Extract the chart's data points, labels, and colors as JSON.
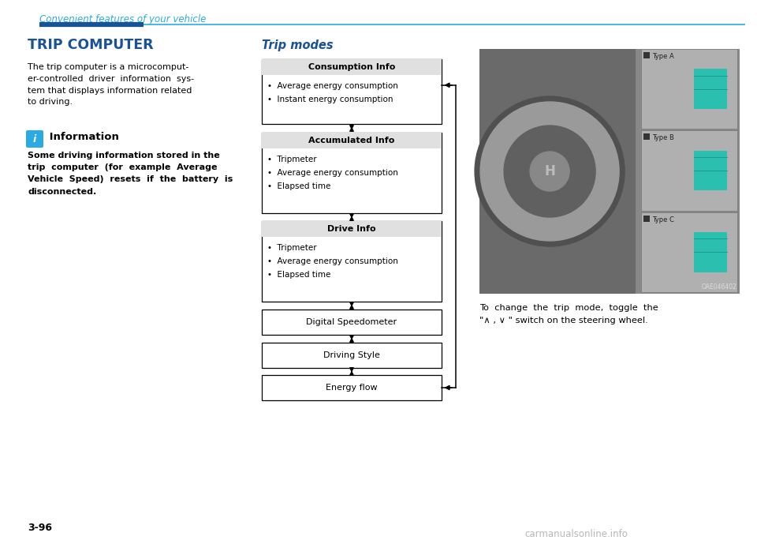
{
  "page_header": "Convenient features of your vehicle",
  "header_color": "#29ABE2",
  "section_title": "TRIP COMPUTER",
  "section_title_color": "#1a5296",
  "body_text": "The trip computer is a microcomput-\ner-controlled  driver  information  sys-\ntem that displays information related\nto driving.",
  "info_icon_color": "#29ABE2",
  "info_title": " Information",
  "info_body": "Some driving information stored in the\ntrip  computer  (for  example  Average\nVehicle  Speed)  resets  if  the  battery  is\ndisconnected.",
  "trip_modes_title": "Trip modes",
  "boxes": [
    {
      "title": "Consumption Info",
      "items": [
        "Average energy consumption",
        "Instant energy consumption"
      ],
      "has_header": true
    },
    {
      "title": "Accumulated Info",
      "items": [
        "Tripmeter",
        "Average energy consumption",
        "Elapsed time"
      ],
      "has_header": true
    },
    {
      "title": "Drive Info",
      "items": [
        "Tripmeter",
        "Average energy consumption",
        "Elapsed time"
      ],
      "has_header": true
    },
    {
      "title": "Digital Speedometer",
      "items": [],
      "has_header": false
    },
    {
      "title": "Driving Style",
      "items": [],
      "has_header": false
    },
    {
      "title": "Energy flow",
      "items": [],
      "has_header": false
    }
  ],
  "page_number": "3-96",
  "bg_color": "#ffffff",
  "text_color": "#000000",
  "caption_line1": "To  change  the  trip  mode,  toggle  the",
  "caption_line2": "\"∧ , ∨ \" switch on the steering wheel.",
  "watermark": "carmanualsonline.info",
  "oae_code": "OAE046402"
}
